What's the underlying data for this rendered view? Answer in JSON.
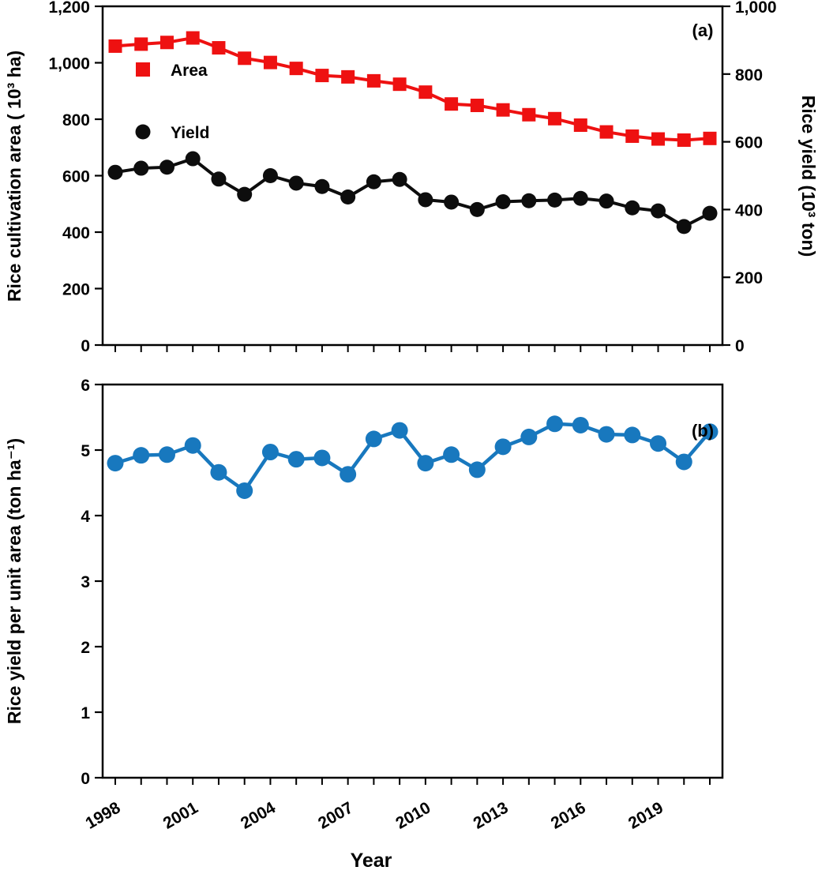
{
  "figure_title": "",
  "chart_data": [
    {
      "type": "line",
      "panel": "a",
      "panel_label": "(a)",
      "x": [
        1998,
        1999,
        2000,
        2001,
        2002,
        2003,
        2004,
        2005,
        2006,
        2007,
        2008,
        2009,
        2010,
        2011,
        2012,
        2013,
        2014,
        2015,
        2016,
        2017,
        2018,
        2019,
        2020,
        2021
      ],
      "series": [
        {
          "name": "Area",
          "axis": "left",
          "marker": "square",
          "marker_size": 17,
          "line_width": 4,
          "color": "#ee1111",
          "values": [
            1059,
            1066,
            1072,
            1088,
            1053,
            1016,
            1001,
            980,
            955,
            950,
            936,
            924,
            896,
            854,
            849,
            833,
            816,
            802,
            779,
            755,
            740,
            730,
            726,
            732
          ]
        },
        {
          "name": "Yield",
          "axis": "right",
          "marker": "circle",
          "marker_size": 19,
          "line_width": 4,
          "color": "#0d0d0d",
          "values": [
            510,
            522,
            525,
            550,
            490,
            445,
            500,
            478,
            468,
            437,
            482,
            489,
            429,
            422,
            400,
            423,
            426,
            428,
            433,
            425,
            405,
            396,
            350,
            389
          ]
        }
      ],
      "left_axis": {
        "label": "Rice cultivation area ( 10³ ha)",
        "min": 0,
        "max": 1200,
        "tick_labels": [
          "0",
          "200",
          "400",
          "600",
          "800",
          "1,000",
          "1,200"
        ]
      },
      "right_axis": {
        "label": "Rice yield (10³ ton)",
        "min": 0,
        "max": 1000,
        "tick_labels": [
          "0",
          "200",
          "400",
          "600",
          "800",
          "1,000"
        ]
      },
      "legend_position": "upper-left-inside",
      "grid": false
    },
    {
      "type": "line",
      "panel": "b",
      "panel_label": "(b)",
      "xlabel": "Year",
      "x": [
        1998,
        1999,
        2000,
        2001,
        2002,
        2003,
        2004,
        2005,
        2006,
        2007,
        2008,
        2009,
        2010,
        2011,
        2012,
        2013,
        2014,
        2015,
        2016,
        2017,
        2018,
        2019,
        2020,
        2021
      ],
      "x_tick_labels": [
        "1998",
        "2001",
        "2004",
        "2007",
        "2010",
        "2013",
        "2016",
        "2019"
      ],
      "series": [
        {
          "name": "Rice yield per unit area",
          "axis": "left",
          "marker": "circle",
          "marker_size": 21,
          "line_width": 4.5,
          "color": "#1878be",
          "values": [
            4.8,
            4.92,
            4.93,
            5.07,
            4.66,
            4.38,
            4.97,
            4.86,
            4.88,
            4.63,
            5.17,
            5.3,
            4.8,
            4.93,
            4.7,
            5.05,
            5.2,
            5.4,
            5.38,
            5.24,
            5.23,
            5.1,
            4.82,
            5.28
          ]
        }
      ],
      "left_axis": {
        "label": "Rice yield per unit area (ton ha⁻¹)",
        "min": 0,
        "max": 6,
        "tick_labels": [
          "0",
          "1",
          "2",
          "3",
          "4",
          "5",
          "6"
        ]
      },
      "grid": false
    }
  ]
}
